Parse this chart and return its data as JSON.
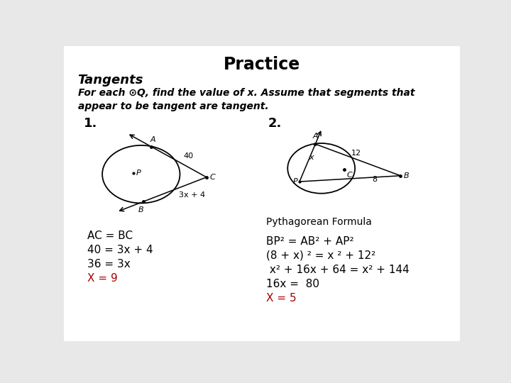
{
  "title": "Practice",
  "subtitle": "Tangents",
  "instruction": "For each ⊙Q, find the value of x. Assume that segments that\nappear to be tangent are tangent.",
  "background_color": "#e8e8e8",
  "panel_color": "#ffffff",
  "p1_number": "1.",
  "p2_number": "2.",
  "p1_sol_lines": [
    "AC = BC",
    "40 = 3x + 4",
    "36 = 3x"
  ],
  "p1_sol_answer": "X = 9",
  "p2_pyth_label": "Pythagorean Formula",
  "p2_sol_lines": [
    "BP² = AB² + AP²",
    "(8 + x) ² = x ² + 12²",
    " x² + 16x + 64 = x² + 144",
    "16x =  80"
  ],
  "p2_sol_answer": "X = 5",
  "text_color": "#000000",
  "red_color": "#aa0000",
  "font_size_title": 17,
  "font_size_subtitle": 13,
  "font_size_instruction": 10,
  "font_size_solution": 11,
  "font_size_number": 13,
  "font_size_diagram": 8
}
